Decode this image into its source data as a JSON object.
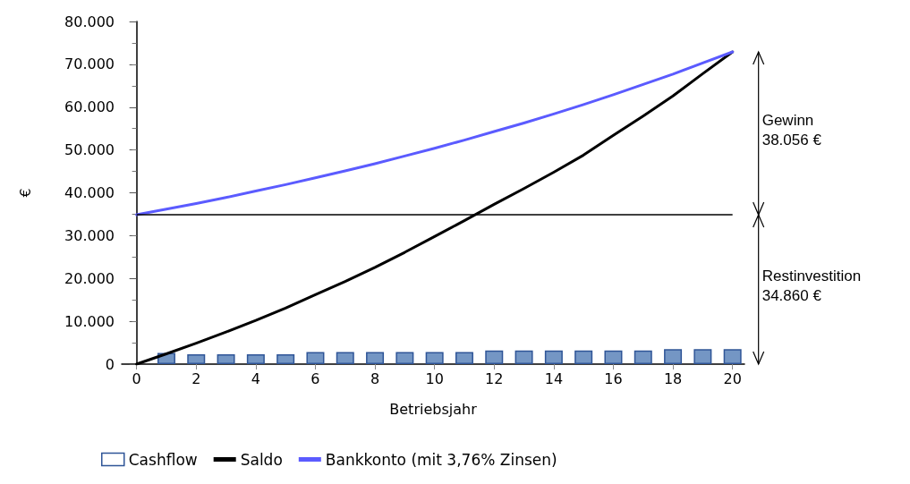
{
  "chart_data": {
    "type": "line",
    "xlabel": "Betriebsjahr",
    "ylabel": "€",
    "x": [
      0,
      1,
      2,
      3,
      4,
      5,
      6,
      7,
      8,
      9,
      10,
      11,
      12,
      13,
      14,
      15,
      16,
      17,
      18,
      19,
      20
    ],
    "xlim": [
      -0.5,
      20.4
    ],
    "xticks": [
      0,
      2,
      4,
      6,
      8,
      10,
      12,
      14,
      16,
      18,
      20
    ],
    "ylim": [
      0,
      80000
    ],
    "yticks": [
      {
        "value": 0,
        "label": "0"
      },
      {
        "value": 10000,
        "label": "10.000"
      },
      {
        "value": 20000,
        "label": "20.000"
      },
      {
        "value": 30000,
        "label": "30.000"
      },
      {
        "value": 40000,
        "label": "40.000"
      },
      {
        "value": 50000,
        "label": "50.000"
      },
      {
        "value": 60000,
        "label": "60.000"
      },
      {
        "value": 70000,
        "label": "70.000"
      },
      {
        "value": 80000,
        "label": "80.000"
      }
    ],
    "series": [
      {
        "name": "Cashflow",
        "type": "bar",
        "color": "#7496c4",
        "x": [
          1,
          2,
          3,
          4,
          5,
          6,
          7,
          8,
          9,
          10,
          11,
          12,
          13,
          14,
          15,
          16,
          17,
          18,
          19,
          20
        ],
        "values": [
          2600,
          2300,
          2300,
          2300,
          2300,
          2800,
          2800,
          2800,
          2800,
          2800,
          2800,
          3200,
          3200,
          3200,
          3200,
          3200,
          3200,
          3500,
          3500,
          3500
        ]
      },
      {
        "name": "Saldo",
        "color": "#000000",
        "values": [
          0,
          2400,
          4900,
          7500,
          10200,
          13100,
          16200,
          19300,
          22600,
          26100,
          29800,
          33500,
          37300,
          41000,
          44800,
          48800,
          53400,
          57900,
          62600,
          67800,
          72900
        ]
      },
      {
        "name": "Bankkonto (mit 3,76% Zinsen)",
        "color": "#5b5bff",
        "values": [
          34900,
          36200,
          37500,
          38900,
          40400,
          41900,
          43500,
          45100,
          46800,
          48600,
          50400,
          52300,
          54300,
          56300,
          58400,
          60600,
          62900,
          65300,
          67700,
          70300,
          72900
        ]
      }
    ],
    "ref_lines": [
      {
        "axis": "y",
        "value": 34860,
        "color": "#000000"
      }
    ],
    "annotations": [
      "Gewinn\n38.056 €",
      "Restinvestition\n34.860 €"
    ],
    "grid": false,
    "legend": "bottom",
    "marker": "none",
    "line_style": "solid"
  }
}
